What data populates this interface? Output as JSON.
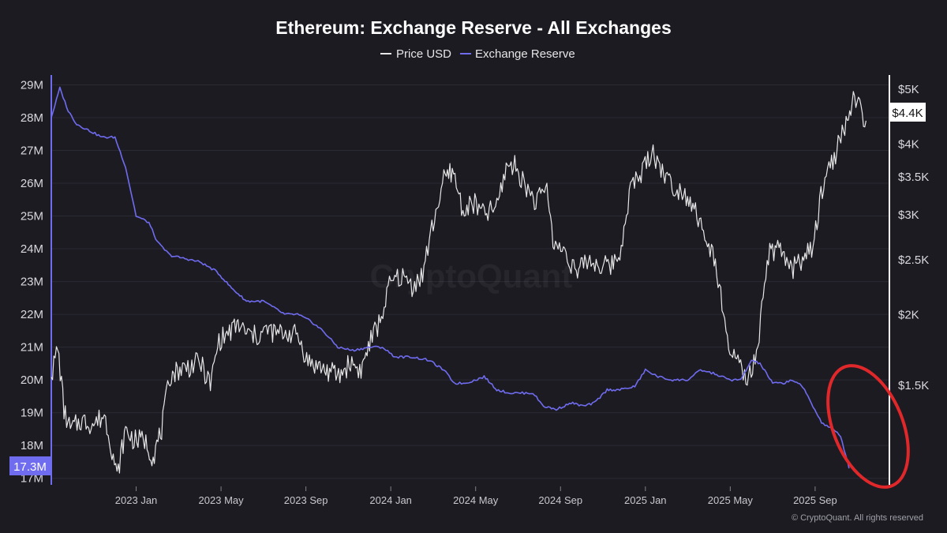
{
  "chart_data": {
    "type": "line",
    "title": "Ethereum: Exchange Reserve - All Exchanges",
    "legend": [
      {
        "name": "Price USD",
        "color": "#e6e6e6"
      },
      {
        "name": "Exchange Reserve",
        "color": "#6f6cf0"
      }
    ],
    "legend_position": "top-center",
    "x_ticks": [
      "2023 Jan",
      "2023 May",
      "2023 Sep",
      "2024 Jan",
      "2024 May",
      "2024 Sep",
      "2025 Jan",
      "2025 May",
      "2025 Sep"
    ],
    "x_tick_months": [
      4,
      8,
      12,
      16,
      20,
      24,
      28,
      32,
      36
    ],
    "x_range_months": [
      0,
      39.5
    ],
    "left_axis": {
      "label": "Exchange Reserve",
      "ticks": [
        "29M",
        "28M",
        "27M",
        "26M",
        "25M",
        "24M",
        "23M",
        "22M",
        "21M",
        "20M",
        "19M",
        "18M",
        "17M"
      ],
      "tick_values": [
        29,
        28,
        27,
        26,
        25,
        24,
        23,
        22,
        21,
        20,
        19,
        18,
        17
      ],
      "range": [
        16.8,
        29.3
      ],
      "last_value_label": "17.3M",
      "last_value": 17.3,
      "color": "#6f6cf0"
    },
    "right_axis": {
      "label": "Price USD",
      "scale": "log",
      "ticks": [
        "$5K",
        "$4K",
        "$3.5K",
        "$3K",
        "$2.5K",
        "$2K",
        "$1.5K"
      ],
      "tick_values": [
        5000,
        4000,
        3500,
        3000,
        2500,
        2000,
        1500
      ],
      "range": [
        1000,
        5300
      ],
      "last_value_label": "$4.4K",
      "last_value": 4400
    },
    "series": [
      {
        "name": "Exchange Reserve",
        "unit": "M ETH",
        "points": [
          [
            0,
            28.0
          ],
          [
            0.4,
            28.9
          ],
          [
            0.8,
            28.2
          ],
          [
            1.2,
            27.8
          ],
          [
            1.8,
            27.6
          ],
          [
            2.4,
            27.4
          ],
          [
            3.0,
            27.4
          ],
          [
            3.5,
            26.5
          ],
          [
            4.0,
            25.0
          ],
          [
            4.6,
            24.8
          ],
          [
            5.0,
            24.2
          ],
          [
            5.6,
            23.8
          ],
          [
            6.3,
            23.7
          ],
          [
            7.0,
            23.6
          ],
          [
            7.8,
            23.3
          ],
          [
            8.5,
            22.8
          ],
          [
            9.2,
            22.4
          ],
          [
            10.0,
            22.4
          ],
          [
            10.5,
            22.2
          ],
          [
            11.0,
            22.0
          ],
          [
            11.6,
            22.0
          ],
          [
            12.2,
            21.8
          ],
          [
            12.8,
            21.5
          ],
          [
            13.5,
            21.0
          ],
          [
            14.2,
            20.9
          ],
          [
            15.0,
            21.0
          ],
          [
            15.6,
            21.0
          ],
          [
            16.2,
            20.7
          ],
          [
            17.0,
            20.7
          ],
          [
            17.8,
            20.6
          ],
          [
            18.5,
            20.3
          ],
          [
            19.0,
            19.9
          ],
          [
            19.5,
            19.9
          ],
          [
            20.0,
            20.0
          ],
          [
            20.4,
            20.1
          ],
          [
            21.0,
            19.7
          ],
          [
            21.6,
            19.6
          ],
          [
            22.2,
            19.6
          ],
          [
            22.7,
            19.6
          ],
          [
            23.2,
            19.2
          ],
          [
            23.8,
            19.1
          ],
          [
            24.5,
            19.3
          ],
          [
            25.1,
            19.2
          ],
          [
            25.6,
            19.3
          ],
          [
            26.2,
            19.7
          ],
          [
            26.8,
            19.7
          ],
          [
            27.5,
            19.8
          ],
          [
            28.0,
            20.3
          ],
          [
            28.6,
            20.1
          ],
          [
            29.2,
            20.0
          ],
          [
            30.0,
            20.0
          ],
          [
            30.6,
            20.3
          ],
          [
            31.2,
            20.2
          ],
          [
            32.0,
            20.0
          ],
          [
            32.5,
            20.0
          ],
          [
            33.0,
            20.6
          ],
          [
            33.4,
            20.5
          ],
          [
            34.0,
            19.9
          ],
          [
            34.5,
            19.9
          ],
          [
            34.9,
            20.0
          ],
          [
            35.2,
            19.9
          ],
          [
            35.5,
            19.7
          ],
          [
            35.9,
            19.2
          ],
          [
            36.3,
            18.7
          ],
          [
            36.8,
            18.5
          ],
          [
            37.2,
            18.3
          ],
          [
            37.6,
            17.3
          ]
        ]
      },
      {
        "name": "Price USD",
        "unit": "USD",
        "points": [
          [
            0,
            1550
          ],
          [
            0.3,
            1750
          ],
          [
            0.6,
            1350
          ],
          [
            0.9,
            1250
          ],
          [
            1.4,
            1300
          ],
          [
            2.0,
            1280
          ],
          [
            2.5,
            1330
          ],
          [
            2.8,
            1190
          ],
          [
            3.1,
            1030
          ],
          [
            3.5,
            1250
          ],
          [
            3.9,
            1200
          ],
          [
            4.4,
            1200
          ],
          [
            4.8,
            1120
          ],
          [
            5.2,
            1250
          ],
          [
            5.6,
            1560
          ],
          [
            6.0,
            1600
          ],
          [
            6.5,
            1620
          ],
          [
            7.0,
            1650
          ],
          [
            7.5,
            1500
          ],
          [
            7.9,
            1800
          ],
          [
            8.4,
            1860
          ],
          [
            8.8,
            1920
          ],
          [
            9.2,
            1850
          ],
          [
            9.7,
            1830
          ],
          [
            10.2,
            1880
          ],
          [
            10.6,
            1850
          ],
          [
            11.1,
            1860
          ],
          [
            11.6,
            1840
          ],
          [
            12.1,
            1650
          ],
          [
            12.6,
            1620
          ],
          [
            13.0,
            1590
          ],
          [
            13.6,
            1560
          ],
          [
            14.1,
            1650
          ],
          [
            14.6,
            1590
          ],
          [
            15.0,
            1780
          ],
          [
            15.5,
            1950
          ],
          [
            16.0,
            2280
          ],
          [
            16.5,
            2340
          ],
          [
            17.0,
            2250
          ],
          [
            17.5,
            2350
          ],
          [
            18.0,
            2900
          ],
          [
            18.5,
            3450
          ],
          [
            18.9,
            3600
          ],
          [
            19.4,
            3050
          ],
          [
            19.9,
            3150
          ],
          [
            20.4,
            3000
          ],
          [
            21.0,
            3100
          ],
          [
            21.5,
            3700
          ],
          [
            21.9,
            3650
          ],
          [
            22.4,
            3350
          ],
          [
            22.9,
            3150
          ],
          [
            23.3,
            3400
          ],
          [
            23.7,
            2640
          ],
          [
            24.2,
            2600
          ],
          [
            24.8,
            2350
          ],
          [
            25.2,
            2500
          ],
          [
            25.8,
            2450
          ],
          [
            26.3,
            2430
          ],
          [
            26.8,
            2550
          ],
          [
            27.3,
            3350
          ],
          [
            27.8,
            3550
          ],
          [
            28.3,
            3900
          ],
          [
            28.8,
            3600
          ],
          [
            29.2,
            3400
          ],
          [
            29.8,
            3300
          ],
          [
            30.3,
            3120
          ],
          [
            30.8,
            2700
          ],
          [
            31.3,
            2500
          ],
          [
            31.8,
            1800
          ],
          [
            32.3,
            1650
          ],
          [
            32.8,
            1520
          ],
          [
            33.3,
            1700
          ],
          [
            33.8,
            2560
          ],
          [
            34.3,
            2600
          ],
          [
            34.9,
            2400
          ],
          [
            35.4,
            2520
          ],
          [
            35.9,
            2600
          ],
          [
            36.4,
            3450
          ],
          [
            36.9,
            3800
          ],
          [
            37.4,
            4300
          ],
          [
            37.8,
            4750
          ],
          [
            38.1,
            4650
          ],
          [
            38.4,
            4400
          ]
        ]
      }
    ],
    "watermark": "CryptoQuant",
    "highlight": {
      "type": "ellipse",
      "color": "#e0282a",
      "target": "recent Exchange Reserve decline"
    },
    "footer": "© CryptoQuant. All rights reserved"
  }
}
